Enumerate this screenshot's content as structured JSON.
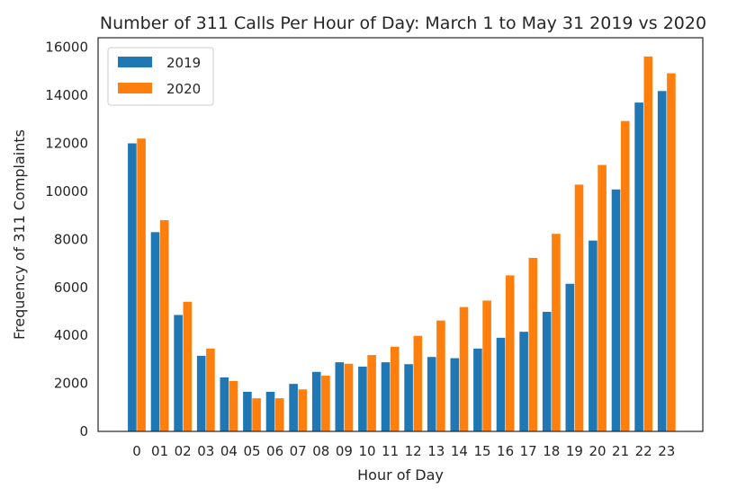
{
  "chart_data": {
    "type": "bar",
    "title": "Number of 311 Calls Per Hour of Day: March 1 to May 31 2019 vs 2020",
    "xlabel": "Hour of Day",
    "ylabel": "Frequency of 311 Complaints",
    "categories": [
      "0",
      "01",
      "02",
      "03",
      "04",
      "05",
      "06",
      "07",
      "08",
      "09",
      "10",
      "11",
      "12",
      "13",
      "14",
      "15",
      "16",
      "17",
      "18",
      "19",
      "20",
      "21",
      "22",
      "23"
    ],
    "series": [
      {
        "name": "2019",
        "color": "#1f77b4",
        "values": [
          12000,
          8300,
          4850,
          3150,
          2250,
          1650,
          1650,
          1980,
          2480,
          2880,
          2700,
          2880,
          2800,
          3100,
          3050,
          3450,
          3900,
          4150,
          4980,
          6150,
          7950,
          10080,
          13700,
          14180
        ]
      },
      {
        "name": "2020",
        "color": "#ff7f0e",
        "values": [
          12200,
          8800,
          5400,
          3450,
          2100,
          1380,
          1380,
          1750,
          2320,
          2820,
          3180,
          3530,
          3980,
          4620,
          5180,
          5450,
          6500,
          7230,
          8230,
          10280,
          11100,
          12930,
          15620,
          14920
        ]
      }
    ],
    "ylim": [
      0,
      16400
    ],
    "yticks": [
      0,
      2000,
      4000,
      6000,
      8000,
      10000,
      12000,
      14000,
      16000
    ],
    "grid": false,
    "legend_position": "upper-left"
  }
}
